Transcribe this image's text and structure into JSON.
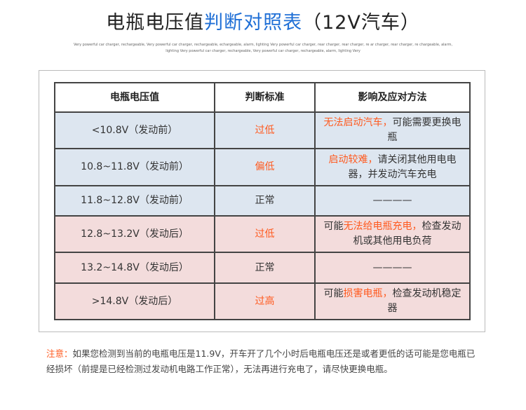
{
  "title": {
    "part1": "电瓶电压值",
    "part2": "判断对照表",
    "part3": "（12V汽车）",
    "highlight_color": "#1f6fd6"
  },
  "subtitle": "Very powerful car charger, rechargeable, Very powerful car charger, rechargeable, echargeable, alarm, lighting Very powerful car charger, rear charger, rear charger, re ar charger, rear charger, re chargeable, alarm, lighting Very powerful car charger, rechargeable, Very powerful car charger, rechargeable, alarm, lighting Very",
  "table": {
    "headers": [
      "电瓶电压值",
      "判断标准",
      "影响及应对方法"
    ],
    "rows": [
      {
        "voltage": "<10.8V（发动前）",
        "status": "过低",
        "pre": "",
        "hl": "无法启动汽车，",
        "post": "可能需要更换电瓶",
        "tint": "blue"
      },
      {
        "voltage": "10.8~11.8V（发动前）",
        "status": "偏低",
        "pre": "",
        "hl": "启动较难，",
        "post": "请关闭其他用电电器，并发动汽车充电",
        "tint": "blue"
      },
      {
        "voltage": "11.8~12.8V（发动前）",
        "status": "正常",
        "pre": "————",
        "hl": "",
        "post": "",
        "tint": "blue"
      },
      {
        "voltage": "12.8~13.2V（发动后）",
        "status": "过低",
        "pre": "可能",
        "hl": "无法给电瓶充电，",
        "post": "检查发动机或其他用电负荷",
        "tint": "pink"
      },
      {
        "voltage": "13.2~14.8V（发动后）",
        "status": "正常",
        "pre": "————",
        "hl": "",
        "post": "",
        "tint": "pink"
      },
      {
        "voltage": ">14.8V（发动后）",
        "status": "过高",
        "pre": "可能",
        "hl": "损害电瓶，",
        "post": "检查发动机稳定器",
        "tint": "pink"
      }
    ],
    "colors": {
      "blue": "#dde6f0",
      "pink": "#f3dcdc",
      "accent": "#ff5a1f"
    }
  },
  "note": {
    "label": "注意：",
    "text": "如果您检测到当前的电瓶电压是11.9V，开车开了几个小时后电瓶电压还是或者更低的话可能是您电瓶已经损坏（前提是已经检测过发动机电路工作正常），无法再进行充电了，请尽快更换电瓶。"
  }
}
